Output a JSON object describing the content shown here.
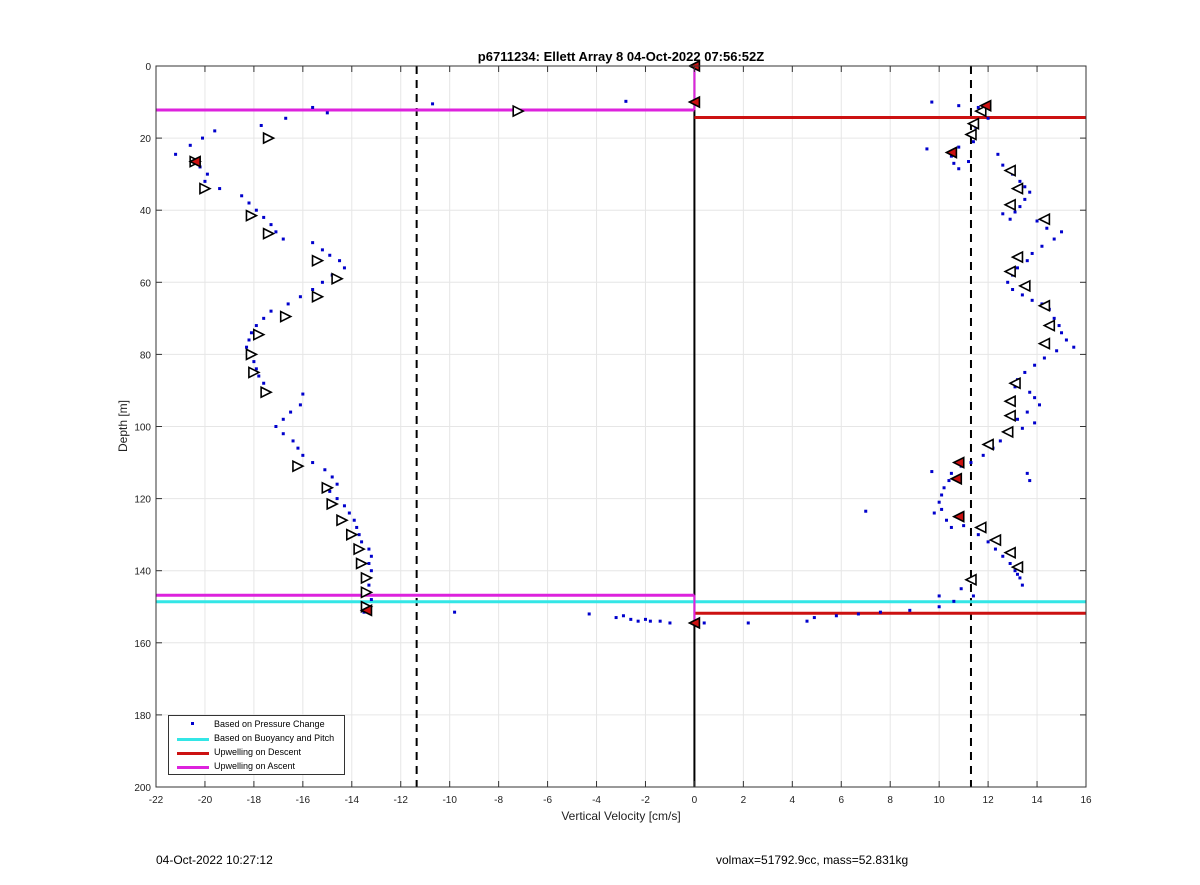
{
  "footer": {
    "timestamp": "04-Oct-2022 10:27:12",
    "info": "volmax=51792.9cc, mass=52.831kg"
  },
  "chart_data": {
    "type": "scatter",
    "title": "p6711234: Ellett Array 8 04-Oct-2022 07:56:52Z",
    "xlabel": "Vertical Velocity [cm/s]",
    "ylabel": "Depth [m]",
    "xlim": [
      -22,
      16
    ],
    "ylim": [
      0,
      200
    ],
    "y_reversed": true,
    "grid": true,
    "xticks": [
      -22,
      -20,
      -18,
      -16,
      -14,
      -12,
      -10,
      -8,
      -6,
      -4,
      -2,
      0,
      2,
      4,
      6,
      8,
      10,
      12,
      14,
      16
    ],
    "yticks": [
      0,
      20,
      40,
      60,
      80,
      100,
      120,
      140,
      160,
      180,
      200
    ],
    "legend": {
      "placement": "bottom-left",
      "entries": [
        {
          "label": "Based on Pressure Change",
          "color": "#0000cc",
          "style": "dot"
        },
        {
          "label": "Based on Buoyancy and Pitch",
          "color": "#33e6e6",
          "style": "line"
        },
        {
          "label": "Upwelling on Descent",
          "color": "#cc1111",
          "style": "line"
        },
        {
          "label": "Upwelling on Ascent",
          "color": "#dd22dd",
          "style": "line"
        }
      ]
    },
    "colors": {
      "pressure": "#0000cc",
      "buoyancy": "#33e6e6",
      "descent": "#cc1111",
      "ascent": "#dd22dd",
      "reference": "#000000"
    },
    "reference_lines": {
      "solid_x": 0,
      "dashed_x": [
        -11.35,
        11.3
      ]
    },
    "ascent_pressure_points": [
      [
        -15.6,
        11.5
      ],
      [
        -15.0,
        13.0
      ],
      [
        -17.7,
        16.5
      ],
      [
        -16.7,
        14.5
      ],
      [
        -19.6,
        18.0
      ],
      [
        -20.1,
        20.0
      ],
      [
        -20.6,
        22.0
      ],
      [
        -21.2,
        24.5
      ],
      [
        -20.5,
        26.0
      ],
      [
        -20.2,
        28.0
      ],
      [
        -19.9,
        30.0
      ],
      [
        -20.0,
        32.0
      ],
      [
        -19.4,
        34.0
      ],
      [
        -18.5,
        36.0
      ],
      [
        -18.2,
        38.0
      ],
      [
        -17.9,
        40.0
      ],
      [
        -17.6,
        42.0
      ],
      [
        -17.3,
        44.0
      ],
      [
        -17.1,
        46.0
      ],
      [
        -16.8,
        48.0
      ],
      [
        -15.6,
        49.0
      ],
      [
        -15.2,
        51.0
      ],
      [
        -14.9,
        52.5
      ],
      [
        -14.5,
        54.0
      ],
      [
        -14.3,
        56.0
      ],
      [
        -14.8,
        58.0
      ],
      [
        -15.2,
        60.0
      ],
      [
        -15.6,
        62.0
      ],
      [
        -16.1,
        64.0
      ],
      [
        -16.6,
        66.0
      ],
      [
        -17.3,
        68.0
      ],
      [
        -17.6,
        70.0
      ],
      [
        -17.9,
        72.0
      ],
      [
        -18.1,
        74.0
      ],
      [
        -18.2,
        76.0
      ],
      [
        -18.3,
        78.0
      ],
      [
        -18.2,
        80.0
      ],
      [
        -18.0,
        82.0
      ],
      [
        -17.9,
        84.0
      ],
      [
        -17.8,
        86.0
      ],
      [
        -17.6,
        88.0
      ],
      [
        -16.0,
        91.0
      ],
      [
        -16.1,
        94.0
      ],
      [
        -16.5,
        96.0
      ],
      [
        -16.8,
        98.0
      ],
      [
        -17.1,
        100.0
      ],
      [
        -16.8,
        102.0
      ],
      [
        -16.4,
        104.0
      ],
      [
        -16.2,
        106.0
      ],
      [
        -16.0,
        108.0
      ],
      [
        -15.6,
        110.0
      ],
      [
        -15.1,
        112.0
      ],
      [
        -14.8,
        114.0
      ],
      [
        -14.6,
        116.0
      ],
      [
        -14.9,
        118.0
      ],
      [
        -14.6,
        120.0
      ],
      [
        -14.3,
        122.0
      ],
      [
        -14.1,
        124.0
      ],
      [
        -13.9,
        126.0
      ],
      [
        -13.8,
        128.0
      ],
      [
        -13.7,
        130.0
      ],
      [
        -13.6,
        132.0
      ],
      [
        -13.3,
        134.0
      ],
      [
        -13.2,
        136.0
      ],
      [
        -13.3,
        138.0
      ],
      [
        -13.2,
        140.0
      ],
      [
        -13.4,
        142.0
      ],
      [
        -13.3,
        144.0
      ],
      [
        -13.4,
        146.0
      ],
      [
        -13.2,
        148.0
      ],
      [
        -13.3,
        150.0
      ],
      [
        -13.5,
        151.5
      ],
      [
        -10.7,
        10.5
      ],
      [
        -2.8,
        9.8
      ],
      [
        -9.8,
        151.5
      ],
      [
        -4.3,
        152.0
      ],
      [
        -3.2,
        153.0
      ],
      [
        -2.9,
        152.5
      ],
      [
        -2.6,
        153.5
      ],
      [
        -2.3,
        154.0
      ],
      [
        -2.0,
        153.5
      ],
      [
        -1.8,
        154.0
      ],
      [
        -1.4,
        154.0
      ],
      [
        -1.0,
        154.5
      ]
    ],
    "descent_pressure_points": [
      [
        9.7,
        10.0
      ],
      [
        10.8,
        11.0
      ],
      [
        11.6,
        11.5
      ],
      [
        11.8,
        13.0
      ],
      [
        12.0,
        14.5
      ],
      [
        11.5,
        17.0
      ],
      [
        11.2,
        19.0
      ],
      [
        11.4,
        21.0
      ],
      [
        10.8,
        22.5
      ],
      [
        9.5,
        23.0
      ],
      [
        10.5,
        25.0
      ],
      [
        10.6,
        27.0
      ],
      [
        10.8,
        28.5
      ],
      [
        11.2,
        26.5
      ],
      [
        12.4,
        24.5
      ],
      [
        12.6,
        27.5
      ],
      [
        13.0,
        30.0
      ],
      [
        13.3,
        32.0
      ],
      [
        13.5,
        33.5
      ],
      [
        13.7,
        35.0
      ],
      [
        13.5,
        37.0
      ],
      [
        13.3,
        39.0
      ],
      [
        13.1,
        40.5
      ],
      [
        12.6,
        41.0
      ],
      [
        12.9,
        42.5
      ],
      [
        14.0,
        43.0
      ],
      [
        14.4,
        45.0
      ],
      [
        15.0,
        46.0
      ],
      [
        14.7,
        48.0
      ],
      [
        14.2,
        50.0
      ],
      [
        13.8,
        52.0
      ],
      [
        13.6,
        54.0
      ],
      [
        13.2,
        56.0
      ],
      [
        13.0,
        58.0
      ],
      [
        12.8,
        60.0
      ],
      [
        13.0,
        62.0
      ],
      [
        13.4,
        63.5
      ],
      [
        13.8,
        65.0
      ],
      [
        14.2,
        66.0
      ],
      [
        14.5,
        67.5
      ],
      [
        14.7,
        70.0
      ],
      [
        14.9,
        72.0
      ],
      [
        15.0,
        74.0
      ],
      [
        15.2,
        76.0
      ],
      [
        15.5,
        78.0
      ],
      [
        14.8,
        79.0
      ],
      [
        14.3,
        81.0
      ],
      [
        13.9,
        83.0
      ],
      [
        13.5,
        85.0
      ],
      [
        13.2,
        87.0
      ],
      [
        13.1,
        89.0
      ],
      [
        13.7,
        90.5
      ],
      [
        13.9,
        92.0
      ],
      [
        14.1,
        94.0
      ],
      [
        13.6,
        96.0
      ],
      [
        13.2,
        98.0
      ],
      [
        13.9,
        99.0
      ],
      [
        13.4,
        100.5
      ],
      [
        12.9,
        102.0
      ],
      [
        12.5,
        104.0
      ],
      [
        12.2,
        106.0
      ],
      [
        11.8,
        108.0
      ],
      [
        11.3,
        110.0
      ],
      [
        10.9,
        111.0
      ],
      [
        9.7,
        112.5
      ],
      [
        10.5,
        113.0
      ],
      [
        10.4,
        115.0
      ],
      [
        10.2,
        117.0
      ],
      [
        10.1,
        119.0
      ],
      [
        10.0,
        121.0
      ],
      [
        10.1,
        123.0
      ],
      [
        9.8,
        124.0
      ],
      [
        10.3,
        126.0
      ],
      [
        10.5,
        128.0
      ],
      [
        11.0,
        127.5
      ],
      [
        11.6,
        130.0
      ],
      [
        12.0,
        132.0
      ],
      [
        12.3,
        134.0
      ],
      [
        12.6,
        136.0
      ],
      [
        12.9,
        138.0
      ],
      [
        13.1,
        140.0
      ],
      [
        13.3,
        142.0
      ],
      [
        13.4,
        144.0
      ],
      [
        13.2,
        141.0
      ],
      [
        13.7,
        115.0
      ],
      [
        13.6,
        113.0
      ],
      [
        7.0,
        123.5
      ],
      [
        10.9,
        145.0
      ],
      [
        11.4,
        147.0
      ],
      [
        10.0,
        147.0
      ],
      [
        10.6,
        148.5
      ],
      [
        10.0,
        150.0
      ],
      [
        8.8,
        151.0
      ],
      [
        7.6,
        151.5
      ],
      [
        6.7,
        152.0
      ],
      [
        5.8,
        152.5
      ],
      [
        4.9,
        153.0
      ],
      [
        4.6,
        154.0
      ],
      [
        2.2,
        154.5
      ],
      [
        0.4,
        154.5
      ]
    ],
    "ascent_buoyancy_markers": [
      [
        -7.2,
        12.5
      ],
      [
        -17.4,
        20.0
      ],
      [
        -20.4,
        26.5
      ],
      [
        -20.0,
        34.0
      ],
      [
        -18.1,
        41.5
      ],
      [
        -17.4,
        46.5
      ],
      [
        -15.4,
        54.0
      ],
      [
        -14.6,
        59.0
      ],
      [
        -15.4,
        64.0
      ],
      [
        -16.7,
        69.5
      ],
      [
        -17.8,
        74.5
      ],
      [
        -18.1,
        80.0
      ],
      [
        -18.0,
        85.0
      ],
      [
        -17.5,
        90.5
      ],
      [
        -16.2,
        111.0
      ],
      [
        -15.0,
        117.0
      ],
      [
        -14.8,
        121.5
      ],
      [
        -14.4,
        126.0
      ],
      [
        -14.0,
        130.0
      ],
      [
        -13.7,
        134.0
      ],
      [
        -13.6,
        138.0
      ],
      [
        -13.4,
        142.0
      ],
      [
        -13.4,
        146.0
      ],
      [
        -13.4,
        150.0
      ]
    ],
    "descent_buoyancy_markers": [
      [
        11.7,
        12.5
      ],
      [
        11.4,
        16.0
      ],
      [
        11.3,
        19.0
      ],
      [
        12.9,
        29.0
      ],
      [
        13.2,
        34.0
      ],
      [
        12.9,
        38.5
      ],
      [
        14.3,
        42.5
      ],
      [
        13.2,
        53.0
      ],
      [
        12.9,
        57.0
      ],
      [
        13.5,
        61.0
      ],
      [
        14.3,
        66.5
      ],
      [
        14.5,
        72.0
      ],
      [
        14.3,
        77.0
      ],
      [
        13.1,
        88.0
      ],
      [
        12.9,
        93.0
      ],
      [
        12.9,
        97.0
      ],
      [
        12.8,
        101.5
      ],
      [
        12.0,
        105.0
      ],
      [
        11.7,
        128.0
      ],
      [
        12.3,
        131.5
      ],
      [
        12.9,
        135.0
      ],
      [
        13.2,
        139.0
      ],
      [
        11.3,
        142.5
      ]
    ],
    "red_filled_markers": [
      [
        0.0,
        0.0
      ],
      [
        0.0,
        10.0
      ],
      [
        11.9,
        11.0
      ],
      [
        10.5,
        24.0
      ],
      [
        10.8,
        110.0
      ],
      [
        10.7,
        114.5
      ],
      [
        10.8,
        125.0
      ],
      [
        -20.4,
        26.5
      ],
      [
        -13.4,
        151.0
      ],
      [
        0.0,
        154.5
      ]
    ],
    "horizontal_lines": [
      {
        "series": "Upwelling on Ascent",
        "y": 12.2,
        "x_from": -22,
        "x_to": 0
      },
      {
        "series": "Upwelling on Descent",
        "y": 14.3,
        "x_from": 0,
        "x_to": 16
      },
      {
        "series": "Upwelling on Ascent",
        "y": 146.8,
        "x_from": -22,
        "x_to": 0
      },
      {
        "series": "Based on Buoyancy and Pitch",
        "y": 148.6,
        "x_from": -22,
        "x_to": 16
      },
      {
        "series": "Upwelling on Descent",
        "y": 151.8,
        "x_from": 0,
        "x_to": 16
      }
    ]
  }
}
